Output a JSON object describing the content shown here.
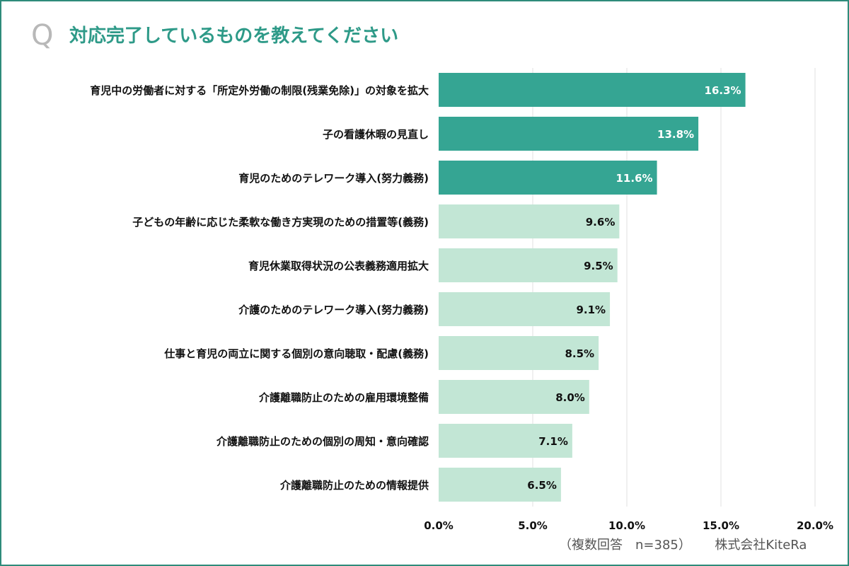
{
  "header": {
    "q_label": "Q",
    "title": "対応完了しているものを教えてください"
  },
  "colors": {
    "highlight": "#35a593",
    "normal": "#c2e6d5",
    "label_on_highlight": "#ffffff",
    "label_on_normal": "#111111",
    "grid": "#e2e2e2"
  },
  "chart_data": {
    "type": "bar",
    "orientation": "horizontal",
    "title": "対応完了しているものを教えてください",
    "categories": [
      "育児中の労働者に対する「所定外労働の制限(残業免除)」の対象を拡大",
      "子の看護休暇の見直し",
      "育児のためのテレワーク導入(努力義務)",
      "子どもの年齢に応じた柔軟な働き方実現のための措置等(義務)",
      "育児休業取得状況の公表義務適用拡大",
      "介護のためのテレワーク導入(努力義務)",
      "仕事と育児の両立に関する個別の意向聴取・配慮(義務)",
      "介護離職防止のための雇用環境整備",
      "介護離職防止のための個別の周知・意向確認",
      "介護離職防止のための情報提供"
    ],
    "values": [
      16.3,
      13.8,
      11.6,
      9.6,
      9.5,
      9.1,
      8.5,
      8.0,
      7.1,
      6.5
    ],
    "value_labels": [
      "16.3%",
      "13.8%",
      "11.6%",
      "9.6%",
      "9.5%",
      "9.1%",
      "8.5%",
      "8.0%",
      "7.1%",
      "6.5%"
    ],
    "highlighted": [
      true,
      true,
      true,
      false,
      false,
      false,
      false,
      false,
      false,
      false
    ],
    "xlim": [
      0,
      20
    ],
    "ticks": [
      0,
      5,
      10,
      15,
      20
    ],
    "tick_labels": [
      "0.0%",
      "5.0%",
      "10.0%",
      "15.0%",
      "20.0%"
    ],
    "grid": true
  },
  "footer": {
    "note": "（複数回答　n=385）",
    "company": "株式会社KiteRa"
  }
}
